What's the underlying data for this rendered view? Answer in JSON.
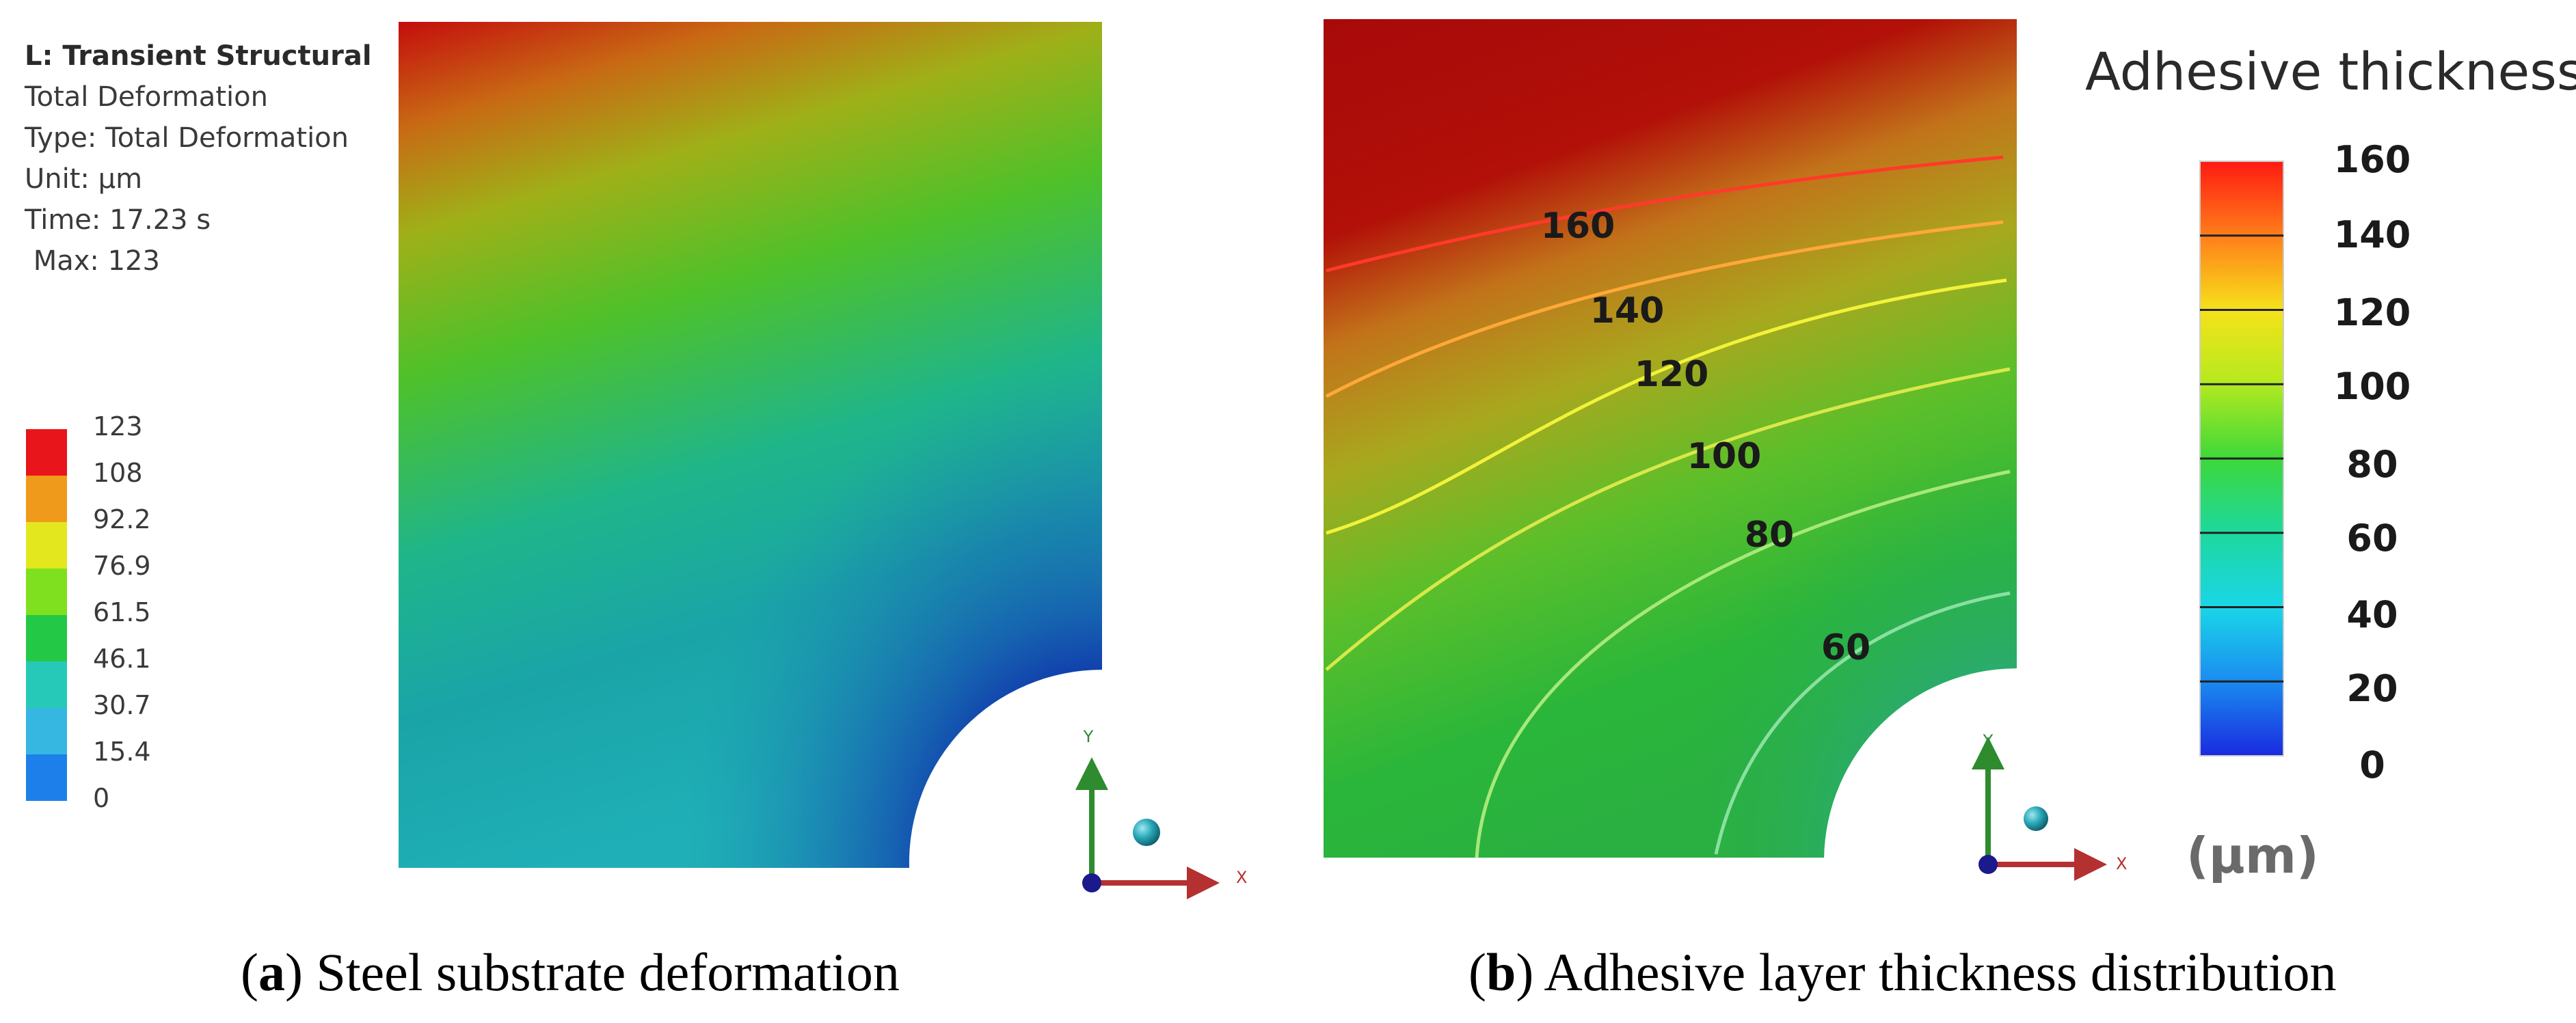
{
  "panel_a": {
    "info": {
      "title": "L: Transient Structural",
      "lines": [
        "Total Deformation",
        "Type: Total Deformation",
        "Unit: µm",
        "Time: 17.23 s",
        " Max: 123"
      ]
    },
    "legend": {
      "values": [
        "123",
        "108",
        "92.2",
        "76.9",
        "61.5",
        "46.1",
        "30.7",
        "15.4",
        "0"
      ],
      "colors": [
        "#e8151a",
        "#f09a1b",
        "#e3e81e",
        "#7fe01f",
        "#24c847",
        "#26c9b7",
        "#35b7e2",
        "#1d80ea",
        "#1520e6"
      ]
    },
    "triad": {
      "y_label": "Y",
      "x_label": "X"
    },
    "caption": {
      "letter": "a",
      "text": ") Steel substrate deformation"
    }
  },
  "panel_b": {
    "title": "Adhesive thickness",
    "unit": "(μm)",
    "colorbar_ticks": [
      "160",
      "140",
      "120",
      "100",
      "80",
      "60",
      "40",
      "20",
      "0"
    ],
    "contour_labels": [
      "160",
      "140",
      "120",
      "100",
      "80",
      "60"
    ],
    "triad": {
      "y_label": "Y",
      "x_label": "X"
    },
    "caption": {
      "letter": "b",
      "text": ") Adhesive layer thickness distribution"
    }
  },
  "colors": {
    "red": "#b00000",
    "axis_green": "#2e8b2e",
    "axis_red": "#b53030",
    "axis_blue": "#1a1a8c",
    "sphere": "#2aa8b8"
  }
}
